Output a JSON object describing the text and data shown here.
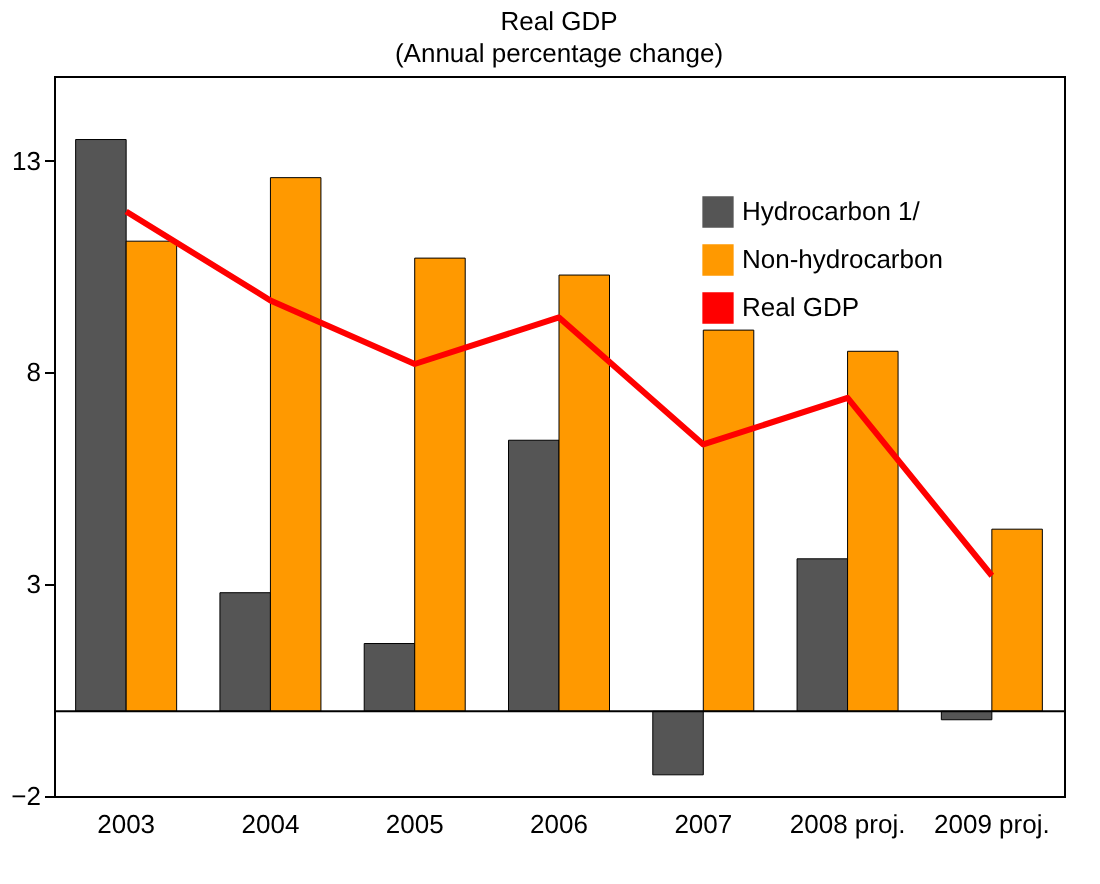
{
  "chart_data": {
    "type": "bar",
    "title": "Real GDP",
    "subtitle": "(Annual percentage change)",
    "categories": [
      "2003",
      "2004",
      "2005",
      "2006",
      "2007",
      "2008 proj.",
      "2009 proj."
    ],
    "series": [
      {
        "name": "Hydrocarbon 1/",
        "color": "#555555",
        "values": [
          13.5,
          2.8,
          1.6,
          6.4,
          -1.5,
          3.6,
          -0.2
        ]
      },
      {
        "name": "Non-hydrocarbon",
        "color": "#ff9900",
        "values": [
          11.1,
          12.6,
          10.7,
          10.3,
          9.0,
          8.5,
          4.3
        ]
      },
      {
        "name": "Real GDP",
        "type": "line",
        "color": "#ff0000",
        "values": [
          11.8,
          9.7,
          8.2,
          9.3,
          6.3,
          7.4,
          3.2
        ]
      }
    ],
    "ylim": [
      -2,
      15
    ],
    "yticks": [
      -2,
      3,
      8,
      13
    ],
    "grid": false,
    "legend": "top right",
    "ref_lines": [
      {
        "axis": "y",
        "value": 0,
        "color": "#000000"
      }
    ]
  }
}
